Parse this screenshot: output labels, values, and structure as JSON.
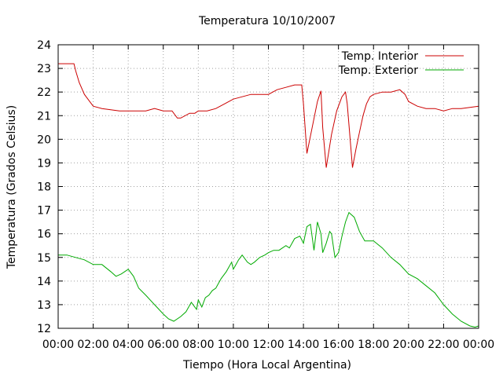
{
  "chart_data": {
    "type": "line",
    "title": "Temperatura 10/10/2007",
    "xlabel": "Tiempo (Hora Local Argentina)",
    "ylabel": "Temperatura (Grados Celsius)",
    "xlim": [
      0,
      24
    ],
    "ylim": [
      12,
      24
    ],
    "grid": true,
    "legend_position": "top-right",
    "x_tick_labels": [
      "00:00",
      "02:00",
      "04:00",
      "06:00",
      "08:00",
      "10:00",
      "12:00",
      "14:00",
      "16:00",
      "18:00",
      "20:00",
      "22:00",
      "00:00"
    ],
    "y_tick_labels": [
      "12",
      "13",
      "14",
      "15",
      "16",
      "17",
      "18",
      "19",
      "20",
      "21",
      "22",
      "23",
      "24"
    ],
    "series": [
      {
        "name": "Temp. Interior",
        "color": "#cc0000",
        "x": [
          0,
          0.9,
          1.0,
          1.2,
          1.5,
          1.8,
          2.0,
          2.5,
          3.0,
          3.5,
          4.0,
          5.0,
          5.5,
          6.0,
          6.5,
          6.8,
          7.0,
          7.5,
          7.8,
          8.0,
          8.5,
          9.0,
          9.5,
          10.0,
          10.5,
          11.0,
          11.5,
          12.0,
          12.5,
          13.0,
          13.5,
          13.9,
          14.0,
          14.2,
          14.5,
          14.8,
          15.0,
          15.1,
          15.3,
          15.6,
          15.9,
          16.2,
          16.4,
          16.5,
          16.8,
          17.0,
          17.2,
          17.4,
          17.6,
          17.8,
          18.0,
          18.5,
          19.0,
          19.5,
          19.8,
          20.0,
          20.5,
          21.0,
          21.5,
          22.0,
          22.5,
          23.0,
          24.0
        ],
        "y": [
          23.2,
          23.2,
          22.9,
          22.4,
          21.9,
          21.6,
          21.4,
          21.3,
          21.25,
          21.2,
          21.2,
          21.2,
          21.3,
          21.2,
          21.2,
          20.9,
          20.9,
          21.1,
          21.1,
          21.2,
          21.2,
          21.3,
          21.5,
          21.7,
          21.8,
          21.9,
          21.9,
          21.9,
          22.1,
          22.2,
          22.3,
          22.3,
          21.5,
          19.4,
          20.5,
          21.6,
          22.05,
          20.5,
          18.8,
          20.2,
          21.2,
          21.8,
          22.0,
          21.5,
          18.8,
          19.6,
          20.3,
          21.0,
          21.5,
          21.8,
          21.9,
          22.0,
          22.0,
          22.1,
          21.9,
          21.6,
          21.4,
          21.3,
          21.3,
          21.2,
          21.3,
          21.3,
          21.4
        ]
      },
      {
        "name": "Temp. Exterior",
        "color": "#00aa00",
        "x": [
          0,
          0.5,
          1.0,
          1.5,
          2.0,
          2.5,
          3.0,
          3.3,
          3.6,
          4.0,
          4.3,
          4.6,
          5.0,
          5.5,
          6.0,
          6.3,
          6.6,
          7.0,
          7.3,
          7.6,
          7.9,
          8.0,
          8.2,
          8.4,
          8.6,
          8.8,
          9.0,
          9.3,
          9.6,
          9.9,
          10.0,
          10.3,
          10.5,
          10.8,
          11.0,
          11.2,
          11.5,
          11.8,
          12.0,
          12.3,
          12.6,
          13.0,
          13.2,
          13.5,
          13.8,
          14.0,
          14.2,
          14.4,
          14.6,
          14.8,
          15.0,
          15.1,
          15.3,
          15.5,
          15.6,
          15.8,
          16.0,
          16.2,
          16.4,
          16.6,
          16.9,
          17.2,
          17.5,
          17.8,
          18.0,
          18.5,
          19.0,
          19.5,
          20.0,
          20.5,
          21.0,
          21.5,
          22.0,
          22.5,
          23.0,
          23.5,
          23.8,
          24.0
        ],
        "y": [
          15.1,
          15.1,
          15.0,
          14.9,
          14.7,
          14.7,
          14.4,
          14.2,
          14.3,
          14.5,
          14.2,
          13.7,
          13.4,
          13.0,
          12.6,
          12.4,
          12.3,
          12.5,
          12.7,
          13.1,
          12.8,
          13.2,
          12.9,
          13.3,
          13.4,
          13.6,
          13.7,
          14.1,
          14.4,
          14.8,
          14.5,
          14.9,
          15.1,
          14.8,
          14.7,
          14.8,
          15.0,
          15.1,
          15.2,
          15.3,
          15.3,
          15.5,
          15.4,
          15.8,
          15.9,
          15.6,
          16.3,
          16.4,
          15.3,
          16.5,
          16.0,
          15.2,
          15.6,
          16.1,
          16.0,
          15.0,
          15.2,
          15.9,
          16.5,
          16.9,
          16.7,
          16.1,
          15.7,
          15.7,
          15.7,
          15.4,
          15.0,
          14.7,
          14.3,
          14.1,
          13.8,
          13.5,
          13.0,
          12.6,
          12.3,
          12.1,
          12.05,
          12.1
        ]
      }
    ]
  }
}
